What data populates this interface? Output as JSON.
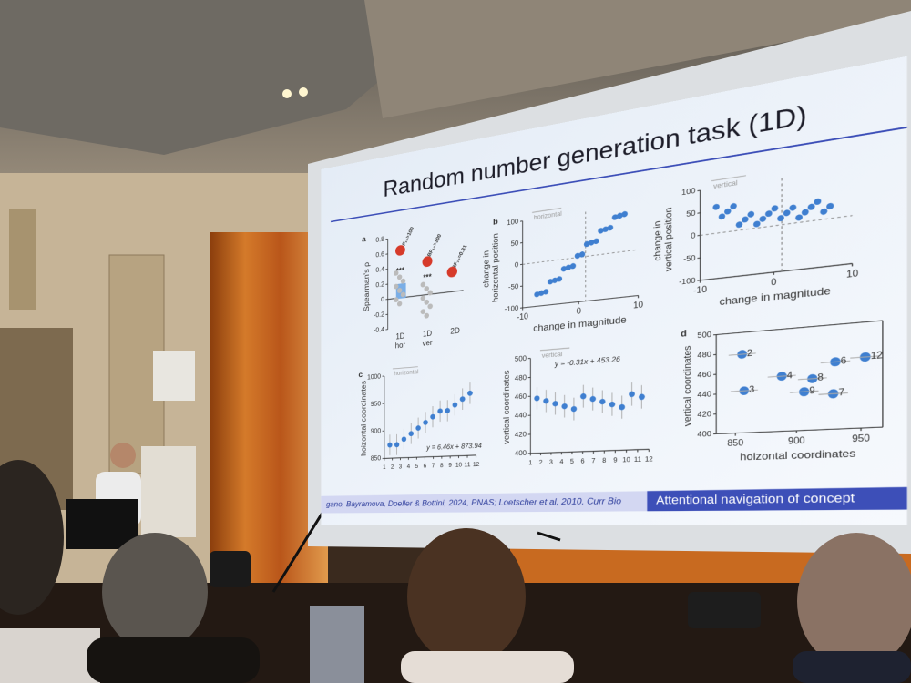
{
  "slide": {
    "title": "Random number generation task (1D)",
    "citation": "gano, Bayramova, Doeller & Bottini, 2024, PNAS; Loetscher et al, 2010, Curr Bio",
    "footer": "Attentional navigation of concept",
    "panels": [
      {
        "letter": "a",
        "ylabel": [
          "Spearman's ρ"
        ],
        "yticks": [
          0.8,
          0.6,
          0.4,
          0.2,
          0,
          -0.2,
          -0.4
        ],
        "categories": [
          [
            "1D",
            "hor"
          ],
          [
            "1D",
            "ver"
          ],
          [
            "2D"
          ]
        ],
        "annotations": [
          "***",
          "***",
          "BF₁₀>100",
          "BF₁₀>100",
          "BF₁₀=0.31"
        ]
      },
      {
        "letter": "b",
        "note": "horizontal",
        "ylabel": [
          "change in",
          "horizontal position"
        ],
        "xlabel": "change in magnitude",
        "xticks": [
          -10,
          0,
          10
        ],
        "yticks": [
          100,
          50,
          0,
          -50,
          -100
        ]
      },
      {
        "note": "vertical",
        "ylabel": [
          "change in",
          "vertical position"
        ],
        "xlabel": "change in magnitude",
        "xticks": [
          -10,
          0,
          10
        ],
        "yticks": [
          100,
          50,
          0,
          -50,
          -100
        ]
      },
      {
        "letter": "c",
        "note": "horizontal",
        "ylabel": [
          "hoizontal coordinates"
        ],
        "yticks": [
          1000,
          950,
          900,
          850
        ],
        "xticks": [
          1,
          2,
          3,
          4,
          5,
          6,
          7,
          8,
          9,
          10,
          11,
          12
        ],
        "equation": "y = 6.46x + 873.94"
      },
      {
        "note": "vertical",
        "ylabel": [
          "vertical coordinates"
        ],
        "yticks": [
          500,
          480,
          460,
          440,
          420,
          400
        ],
        "xticks": [
          1,
          2,
          3,
          4,
          5,
          6,
          7,
          8,
          9,
          10,
          11,
          12
        ],
        "equation": "y = -0.31x + 453.26"
      },
      {
        "letter": "d",
        "ylabel": [
          "vertical coordinates"
        ],
        "xlabel": "hoizontal coordinates",
        "xticks": [
          850,
          900,
          950
        ],
        "yticks": [
          500,
          480,
          460,
          440,
          420,
          400
        ],
        "point_labels": [
          "2",
          "3",
          "4",
          "8",
          "6",
          "9",
          "7",
          "12"
        ]
      }
    ]
  }
}
